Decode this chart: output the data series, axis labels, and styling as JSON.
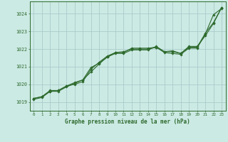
{
  "title": "Graphe pression niveau de la mer (hPa)",
  "bg_color": "#cceae4",
  "grid_color": "#aacccc",
  "line_color": "#2d6a2d",
  "xlim": [
    -0.5,
    23.5
  ],
  "ylim": [
    1018.5,
    1024.7
  ],
  "xticks": [
    0,
    1,
    2,
    3,
    4,
    5,
    6,
    7,
    8,
    9,
    10,
    11,
    12,
    13,
    14,
    15,
    16,
    17,
    18,
    19,
    20,
    21,
    22,
    23
  ],
  "yticks": [
    1019,
    1020,
    1021,
    1022,
    1023,
    1024
  ],
  "series": [
    [
      1019.2,
      1019.3,
      1019.65,
      1019.65,
      1019.9,
      1020.0,
      1020.15,
      1020.85,
      1021.25,
      1021.6,
      1021.8,
      1021.8,
      1022.05,
      1022.05,
      1022.05,
      1022.1,
      1021.8,
      1021.75,
      1021.7,
      1022.05,
      1022.05,
      1022.85,
      1023.95,
      1024.3
    ],
    [
      1019.15,
      1019.25,
      1019.6,
      1019.6,
      1019.85,
      1020.05,
      1020.25,
      1020.7,
      1021.15,
      1021.55,
      1021.8,
      1021.85,
      1022.0,
      1022.0,
      1022.0,
      1022.1,
      1021.85,
      1021.85,
      1021.75,
      1022.15,
      1022.15,
      1022.75,
      1023.45,
      1024.35
    ],
    [
      1019.2,
      1019.3,
      1019.6,
      1019.65,
      1019.9,
      1020.1,
      1020.25,
      1020.95,
      1021.2,
      1021.55,
      1021.75,
      1021.75,
      1021.95,
      1021.95,
      1021.95,
      1022.15,
      1021.85,
      1021.9,
      1021.75,
      1022.1,
      1022.1,
      1022.9,
      1023.5,
      1024.35
    ]
  ]
}
